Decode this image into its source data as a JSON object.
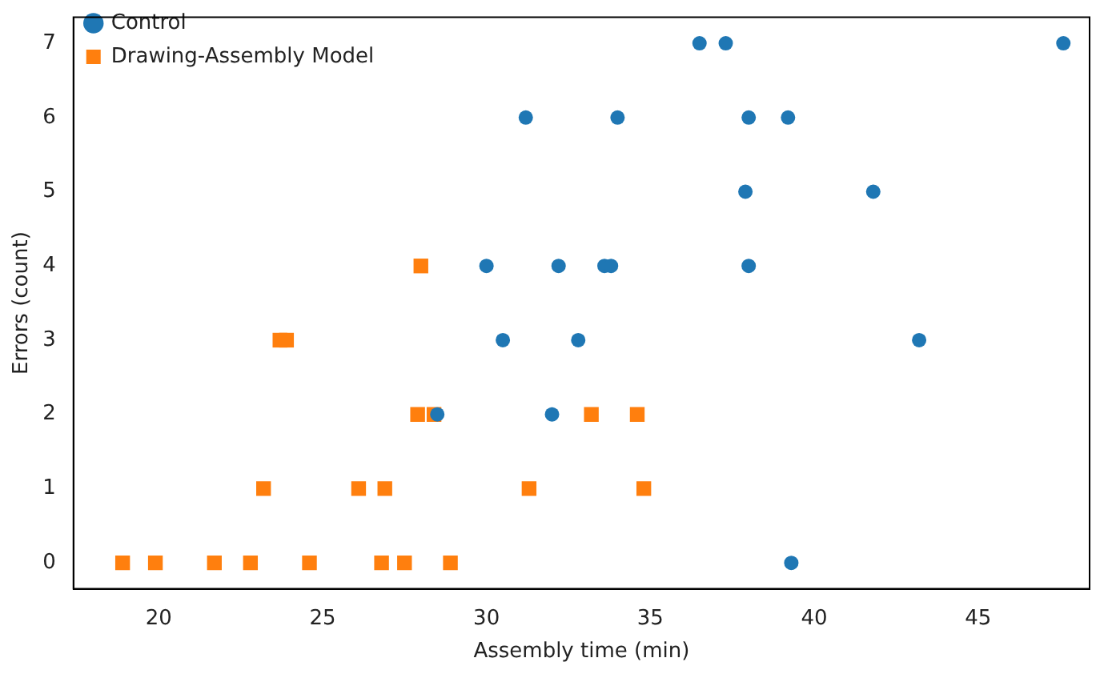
{
  "chart_data": {
    "type": "scatter",
    "xlabel": "Assembly time (min)",
    "ylabel": "Errors (count)",
    "xlim": [
      17.4,
      48.4
    ],
    "xticks": [
      20,
      25,
      30,
      35,
      40,
      45
    ],
    "ylim": [
      -0.35,
      7.35
    ],
    "yticks": [
      0,
      1,
      2,
      3,
      4,
      5,
      6,
      7
    ],
    "grid": false,
    "legend": "top left",
    "series": [
      {
        "name": "Control",
        "color": "#1f77b4",
        "marker": "circle",
        "x": [
          36.5,
          37.3,
          47.6,
          31.2,
          34.0,
          38.0,
          39.2,
          37.9,
          41.8,
          30.0,
          32.2,
          33.6,
          33.8,
          38.0,
          30.5,
          32.8,
          43.2,
          28.5,
          32.0,
          39.3
        ],
        "values": [
          7,
          7,
          7,
          6,
          6,
          6,
          6,
          5,
          5,
          4,
          4,
          4,
          4,
          4,
          3,
          3,
          3,
          2,
          2,
          0
        ]
      },
      {
        "name": "Drawing-Assembly Model",
        "color": "#ff7f0e",
        "marker": "square",
        "x": [
          18.9,
          19.9,
          21.7,
          22.8,
          24.6,
          26.8,
          27.5,
          28.9,
          23.2,
          26.1,
          26.9,
          31.3,
          34.8,
          27.9,
          28.4,
          33.2,
          34.6,
          23.7,
          23.9,
          28.0
        ],
        "values": [
          0,
          0,
          0,
          0,
          0,
          0,
          0,
          0,
          1,
          1,
          1,
          1,
          1,
          2,
          2,
          2,
          2,
          3,
          3,
          4
        ]
      }
    ]
  }
}
